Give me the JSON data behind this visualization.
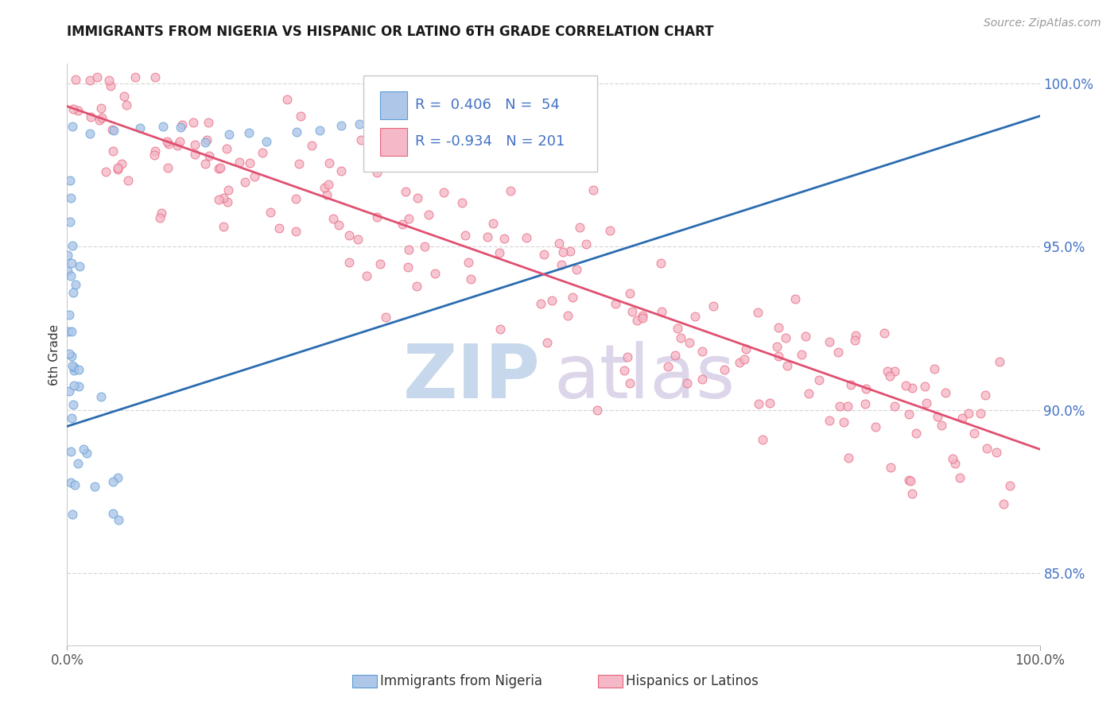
{
  "title": "IMMIGRANTS FROM NIGERIA VS HISPANIC OR LATINO 6TH GRADE CORRELATION CHART",
  "source": "Source: ZipAtlas.com",
  "ylabel": "6th Grade",
  "legend_blue_text": "R =  0.406   N =  54",
  "legend_pink_text": "R = -0.934   N = 201",
  "bottom_legend_blue": "Immigrants from Nigeria",
  "bottom_legend_pink": "Hispanics or Latinos",
  "blue_fill": "#aec6e8",
  "blue_edge": "#5b9bd5",
  "pink_fill": "#f4b8c8",
  "pink_edge": "#e8647a",
  "blue_line_color": "#2b6cb0",
  "pink_line_color": "#e05070",
  "legend_text_color": "#4472c4",
  "right_tick_color": "#4472c4",
  "title_color": "#1a1a1a",
  "source_color": "#999999",
  "grid_color": "#d8d8d8",
  "background": "#ffffff",
  "xlim": [
    0.0,
    1.0
  ],
  "ylim": [
    0.828,
    1.006
  ],
  "yticks": [
    0.85,
    0.9,
    0.95,
    1.0
  ],
  "ytick_labels": [
    "85.0%",
    "90.0%",
    "95.0%",
    "100.0%"
  ],
  "xtick_labels": [
    "0.0%",
    "100.0%"
  ],
  "watermark_zip_color": "#c8d8ec",
  "watermark_atlas_color": "#ddd5ea"
}
